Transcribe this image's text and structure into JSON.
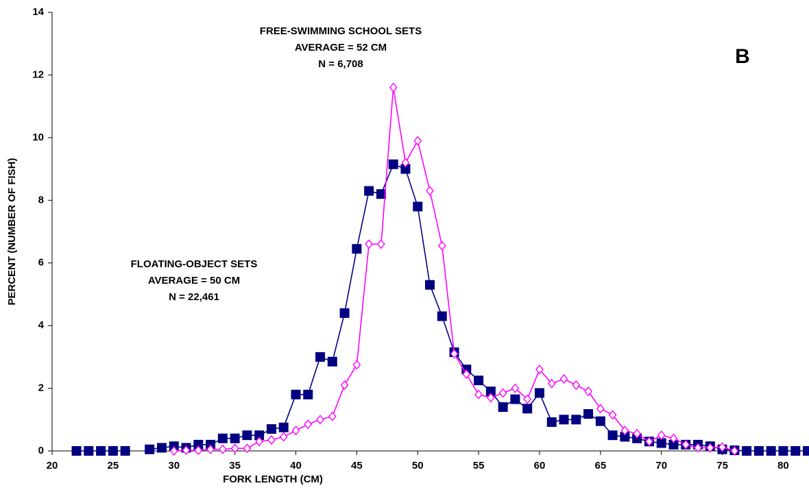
{
  "chart_data": {
    "type": "line",
    "xlabel": "FORK LENGTH (CM)",
    "ylabel": "PERCENT (NUMBER OF FISH)",
    "panel_label": "B",
    "annotations": [
      {
        "lines": [
          "FREE-SWIMMING SCHOOL SETS",
          "AVERAGE = 52 CM",
          "N = 6,708"
        ]
      },
      {
        "lines": [
          "FLOATING-OBJECT SETS",
          "AVERAGE = 50 CM",
          "N = 22,461"
        ]
      }
    ],
    "x": [
      22,
      23,
      24,
      25,
      26,
      27,
      28,
      29,
      30,
      31,
      32,
      33,
      34,
      35,
      36,
      37,
      38,
      39,
      40,
      41,
      42,
      43,
      44,
      45,
      46,
      47,
      48,
      49,
      50,
      51,
      52,
      53,
      54,
      55,
      56,
      57,
      58,
      59,
      60,
      61,
      62,
      63,
      64,
      65,
      66,
      67,
      68,
      69,
      70,
      71,
      72,
      73,
      74,
      75,
      76,
      77,
      78,
      79,
      80,
      81,
      82
    ],
    "series": [
      {
        "color": "#000080",
        "marker": "square",
        "values": [
          0,
          0,
          0,
          0,
          0,
          null,
          0.05,
          0.1,
          0.15,
          0.1,
          0.2,
          0.2,
          0.4,
          0.4,
          0.5,
          0.5,
          0.7,
          0.75,
          1.8,
          1.8,
          3.0,
          2.85,
          4.4,
          6.45,
          8.3,
          8.2,
          9.15,
          9.0,
          7.8,
          5.3,
          4.3,
          3.15,
          2.6,
          2.25,
          1.9,
          1.4,
          1.65,
          1.35,
          1.85,
          0.92,
          1.0,
          1.0,
          1.18,
          0.95,
          0.5,
          0.45,
          0.4,
          0.3,
          0.25,
          0.2,
          0.2,
          0.2,
          0.15,
          0.05,
          0.02,
          0,
          0,
          0,
          0,
          0,
          0
        ]
      },
      {
        "color": "#ff00ff",
        "marker": "diamond",
        "values": [
          null,
          null,
          null,
          null,
          null,
          null,
          null,
          null,
          0,
          0.02,
          0.02,
          0.05,
          0.05,
          0.08,
          0.08,
          0.3,
          0.35,
          0.45,
          0.65,
          0.85,
          1.0,
          1.1,
          2.1,
          2.75,
          6.6,
          6.6,
          11.6,
          9.2,
          9.9,
          8.3,
          6.55,
          3.1,
          2.45,
          1.8,
          1.7,
          1.85,
          2.0,
          1.65,
          2.6,
          2.15,
          2.3,
          2.1,
          1.9,
          1.35,
          1.15,
          0.65,
          0.55,
          0.3,
          0.5,
          0.4,
          0.2,
          0.1,
          0.1,
          0.12,
          0,
          null,
          null,
          null,
          null,
          null,
          null
        ]
      }
    ],
    "xlim": [
      20,
      82
    ],
    "xticks": [
      20,
      25,
      30,
      35,
      40,
      45,
      50,
      55,
      60,
      65,
      70,
      75,
      80
    ],
    "ylim": [
      0,
      14
    ],
    "yticks": [
      0,
      2,
      4,
      6,
      8,
      10,
      12,
      14
    ],
    "grid": false
  }
}
